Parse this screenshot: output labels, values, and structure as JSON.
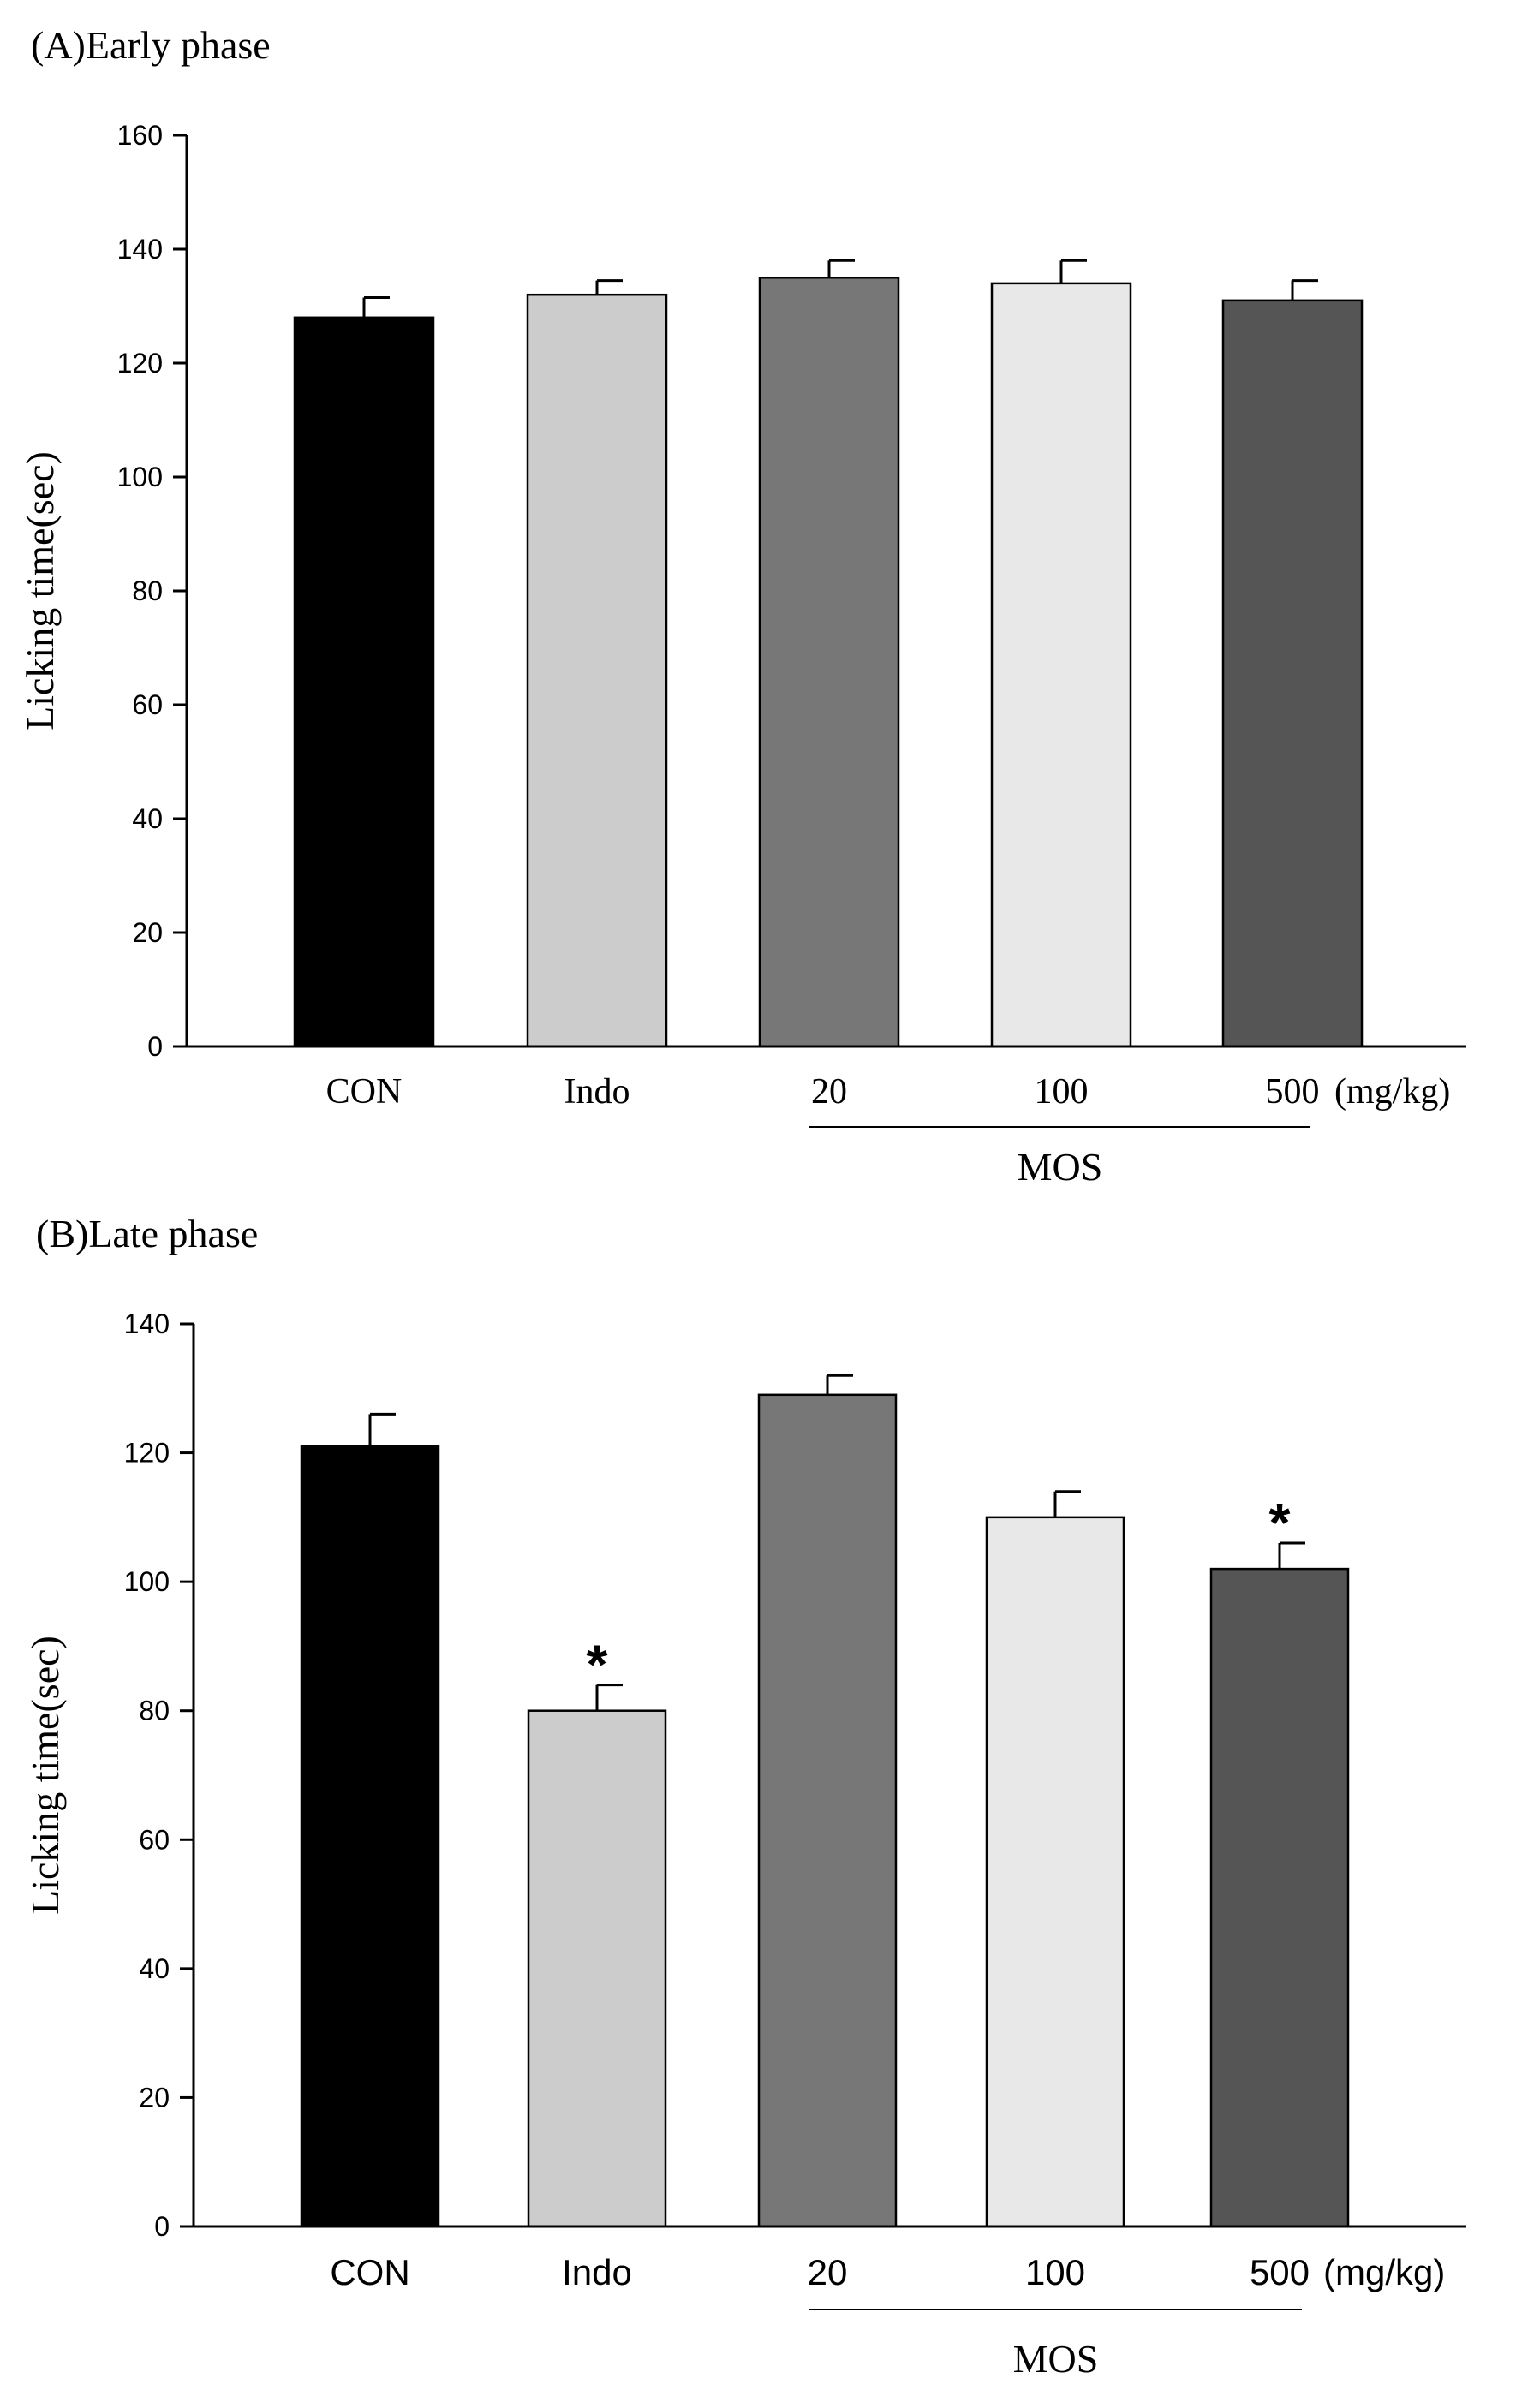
{
  "chart_data": [
    {
      "type": "bar",
      "panel_label": "(A)Early phase",
      "ylabel": "Licking time(sec)",
      "xlabel": "",
      "categories": [
        "CON",
        "Indo",
        "20",
        "100",
        "500"
      ],
      "values": [
        128,
        132,
        135,
        134,
        131
      ],
      "errors": [
        3.5,
        2.5,
        3,
        4,
        3.5
      ],
      "significance": [
        "",
        "",
        "",
        "",
        ""
      ],
      "bar_colors": [
        "#000000",
        "#cccccc",
        "#777777",
        "#e8e8e8",
        "#555555"
      ],
      "ylim": [
        0,
        160
      ],
      "yticks": [
        0,
        20,
        40,
        60,
        80,
        100,
        120,
        140,
        160
      ],
      "unit_label": "(mg/kg)",
      "group_label": "MOS",
      "group_members": [
        "20",
        "100",
        "500"
      ],
      "grid": false,
      "legend": "none"
    },
    {
      "type": "bar",
      "panel_label": "(B)Late phase",
      "ylabel": "Licking time(sec)",
      "xlabel": "",
      "categories": [
        "CON",
        "Indo",
        "20",
        "100",
        "500"
      ],
      "values": [
        121,
        80,
        129,
        110,
        102
      ],
      "errors": [
        5,
        4,
        3,
        4,
        4
      ],
      "significance": [
        "",
        "*",
        "",
        "",
        "*"
      ],
      "bar_colors": [
        "#000000",
        "#cccccc",
        "#777777",
        "#e8e8e8",
        "#555555"
      ],
      "ylim": [
        0,
        140
      ],
      "yticks": [
        0,
        20,
        40,
        60,
        80,
        100,
        120,
        140
      ],
      "unit_label": "(mg/kg)",
      "group_label": "MOS",
      "group_members": [
        "20",
        "100",
        "500"
      ],
      "grid": false,
      "legend": "none"
    }
  ]
}
